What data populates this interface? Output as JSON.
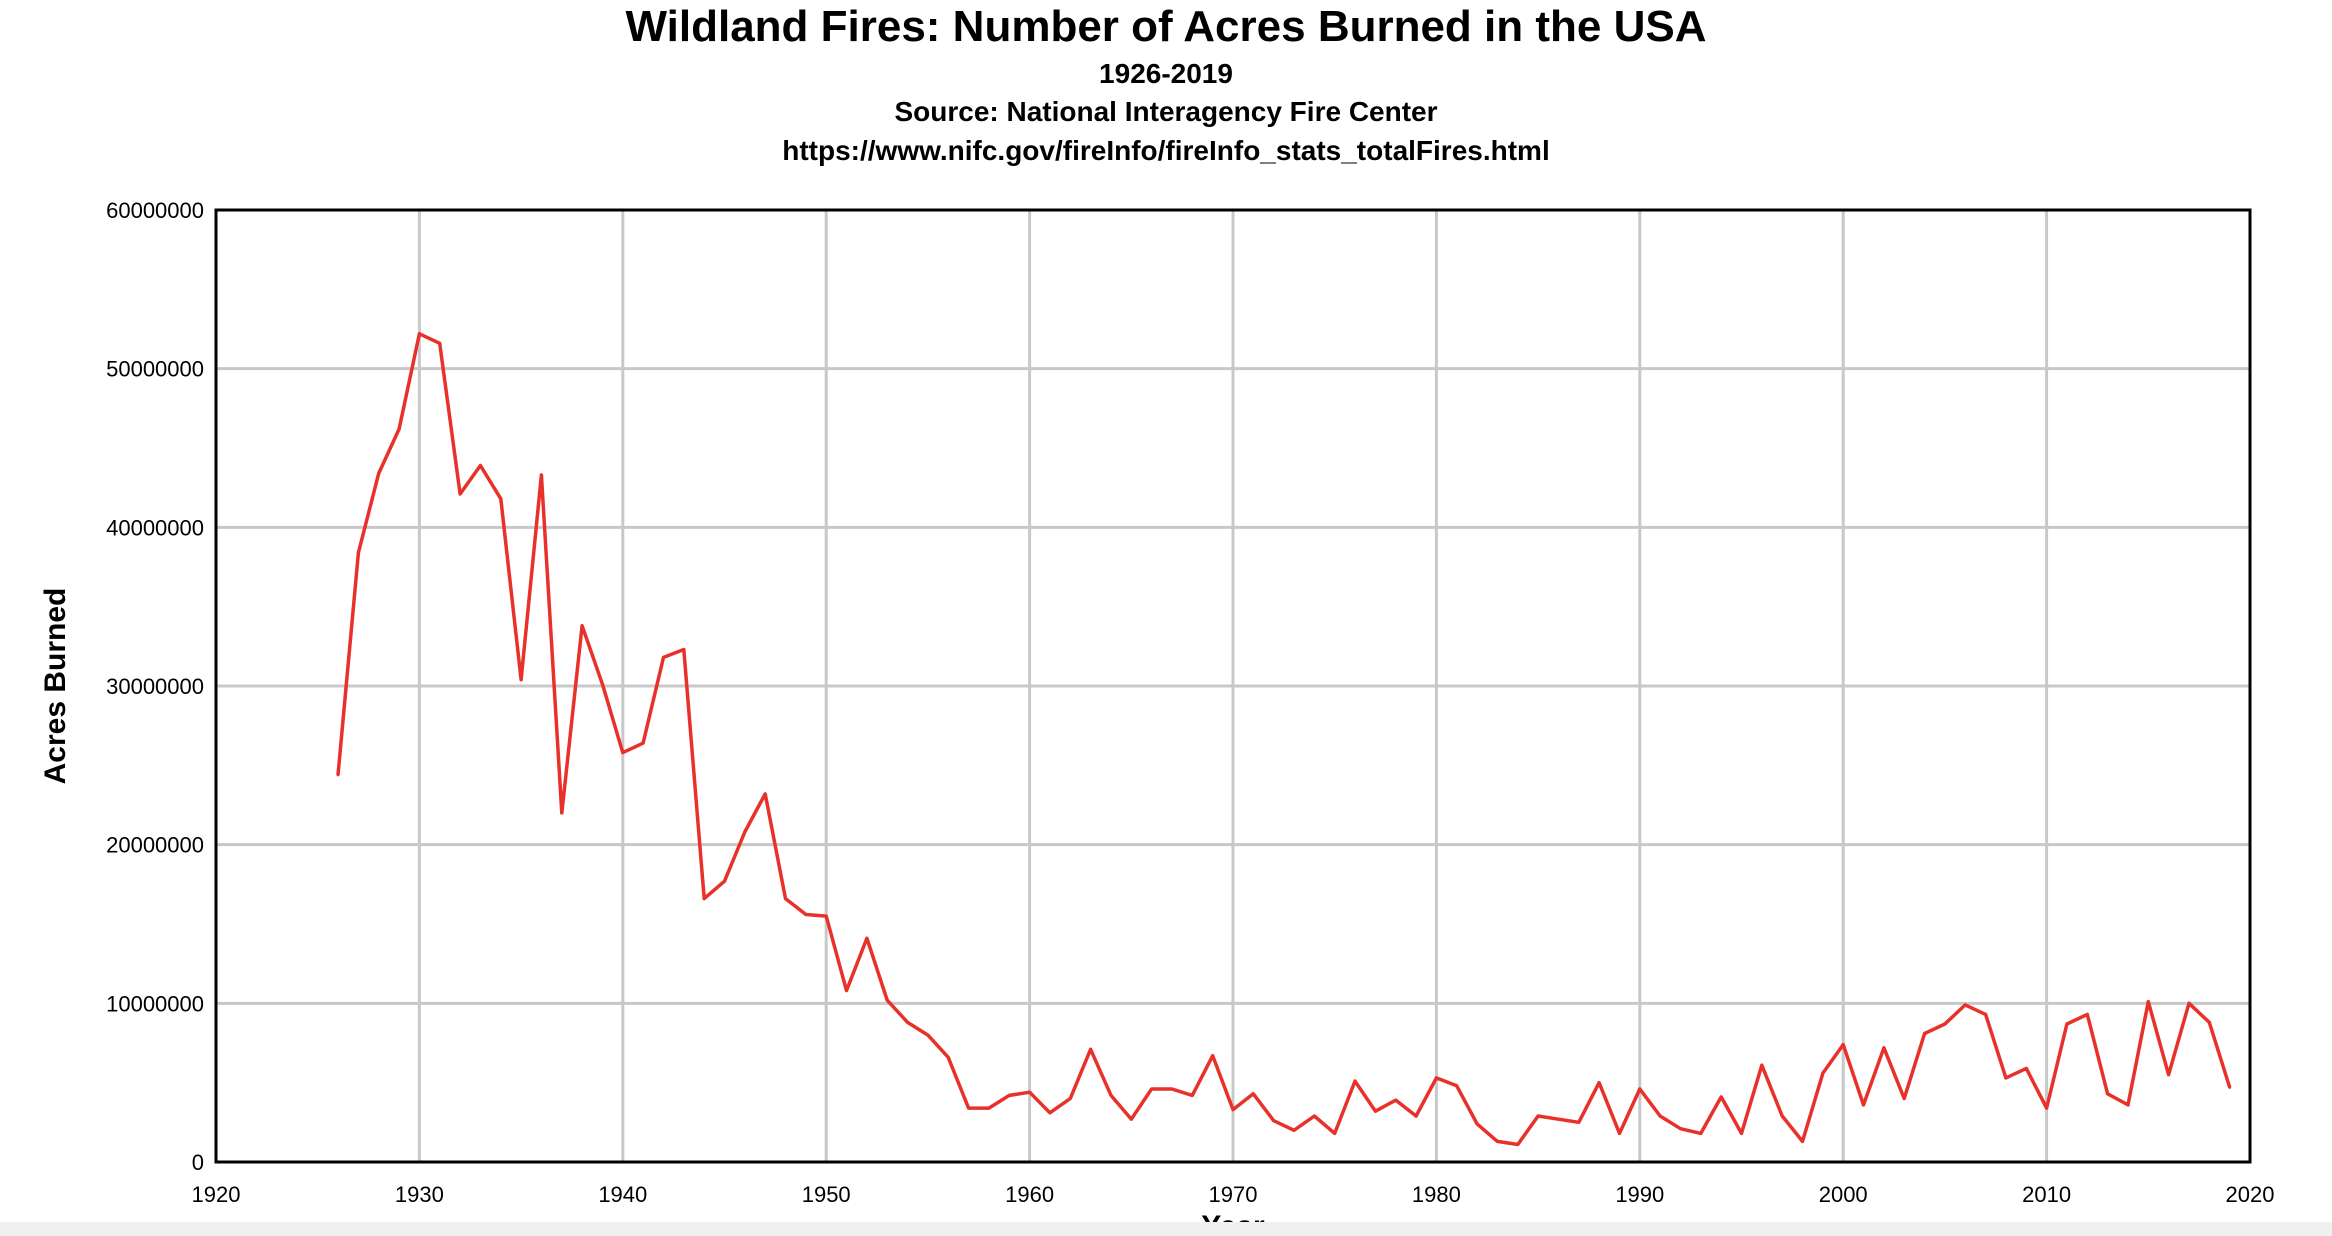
{
  "chart_data": {
    "type": "line",
    "title": "Wildland Fires: Number of Acres Burned in the USA",
    "subtitles": [
      "1926-2019",
      "Source: National Interagency Fire Center",
      "https://www.nifc.gov/fireInfo/fireInfo_stats_totalFires.html"
    ],
    "xlabel": "Year",
    "ylabel": "Acres Burned",
    "xlim": [
      1920,
      2020
    ],
    "ylim": [
      0,
      60000000
    ],
    "xticks": [
      "1920",
      "1930",
      "1940",
      "1950",
      "1960",
      "1970",
      "1980",
      "1990",
      "2000",
      "2010",
      "2020"
    ],
    "yticks": [
      "0",
      "10000000",
      "20000000",
      "30000000",
      "40000000",
      "50000000",
      "60000000"
    ],
    "grid": true,
    "line_color": "#e8312a",
    "x": [
      1926,
      1927,
      1928,
      1929,
      1930,
      1931,
      1932,
      1933,
      1934,
      1935,
      1936,
      1937,
      1938,
      1939,
      1940,
      1941,
      1942,
      1943,
      1944,
      1945,
      1946,
      1947,
      1948,
      1949,
      1950,
      1951,
      1952,
      1953,
      1954,
      1955,
      1956,
      1957,
      1958,
      1959,
      1960,
      1961,
      1962,
      1963,
      1964,
      1965,
      1966,
      1967,
      1968,
      1969,
      1970,
      1971,
      1972,
      1973,
      1974,
      1975,
      1976,
      1977,
      1978,
      1979,
      1980,
      1981,
      1982,
      1983,
      1984,
      1985,
      1986,
      1987,
      1988,
      1989,
      1990,
      1991,
      1992,
      1993,
      1994,
      1995,
      1996,
      1997,
      1998,
      1999,
      2000,
      2001,
      2002,
      2003,
      2004,
      2005,
      2006,
      2007,
      2008,
      2009,
      2010,
      2011,
      2012,
      2013,
      2014,
      2015,
      2016,
      2017,
      2018,
      2019
    ],
    "y": [
      24400000,
      38400000,
      43400000,
      46200000,
      52200000,
      51600000,
      42100000,
      43900000,
      41800000,
      30400000,
      43300000,
      22000000,
      33800000,
      30100000,
      25800000,
      26400000,
      31800000,
      32300000,
      16600000,
      17700000,
      20800000,
      23200000,
      16600000,
      15600000,
      15500000,
      10800000,
      14100000,
      10200000,
      8800000,
      8000000,
      6600000,
      3400000,
      3400000,
      4200000,
      4400000,
      3100000,
      4000000,
      7100000,
      4200000,
      2700000,
      4600000,
      4600000,
      4200000,
      6700000,
      3300000,
      4300000,
      2600000,
      2000000,
      2900000,
      1800000,
      5100000,
      3200000,
      3900000,
      2900000,
      5300000,
      4800000,
      2400000,
      1300000,
      1100000,
      2900000,
      2700000,
      2500000,
      5000000,
      1800000,
      4600000,
      2900000,
      2100000,
      1800000,
      4100000,
      1800000,
      6100000,
      2900000,
      1300000,
      5600000,
      7400000,
      3600000,
      7200000,
      4000000,
      8100000,
      8700000,
      9900000,
      9300000,
      5300000,
      5900000,
      3400000,
      8700000,
      9300000,
      4300000,
      3600000,
      10100000,
      5500000,
      10000000,
      8800000,
      4700000
    ]
  }
}
